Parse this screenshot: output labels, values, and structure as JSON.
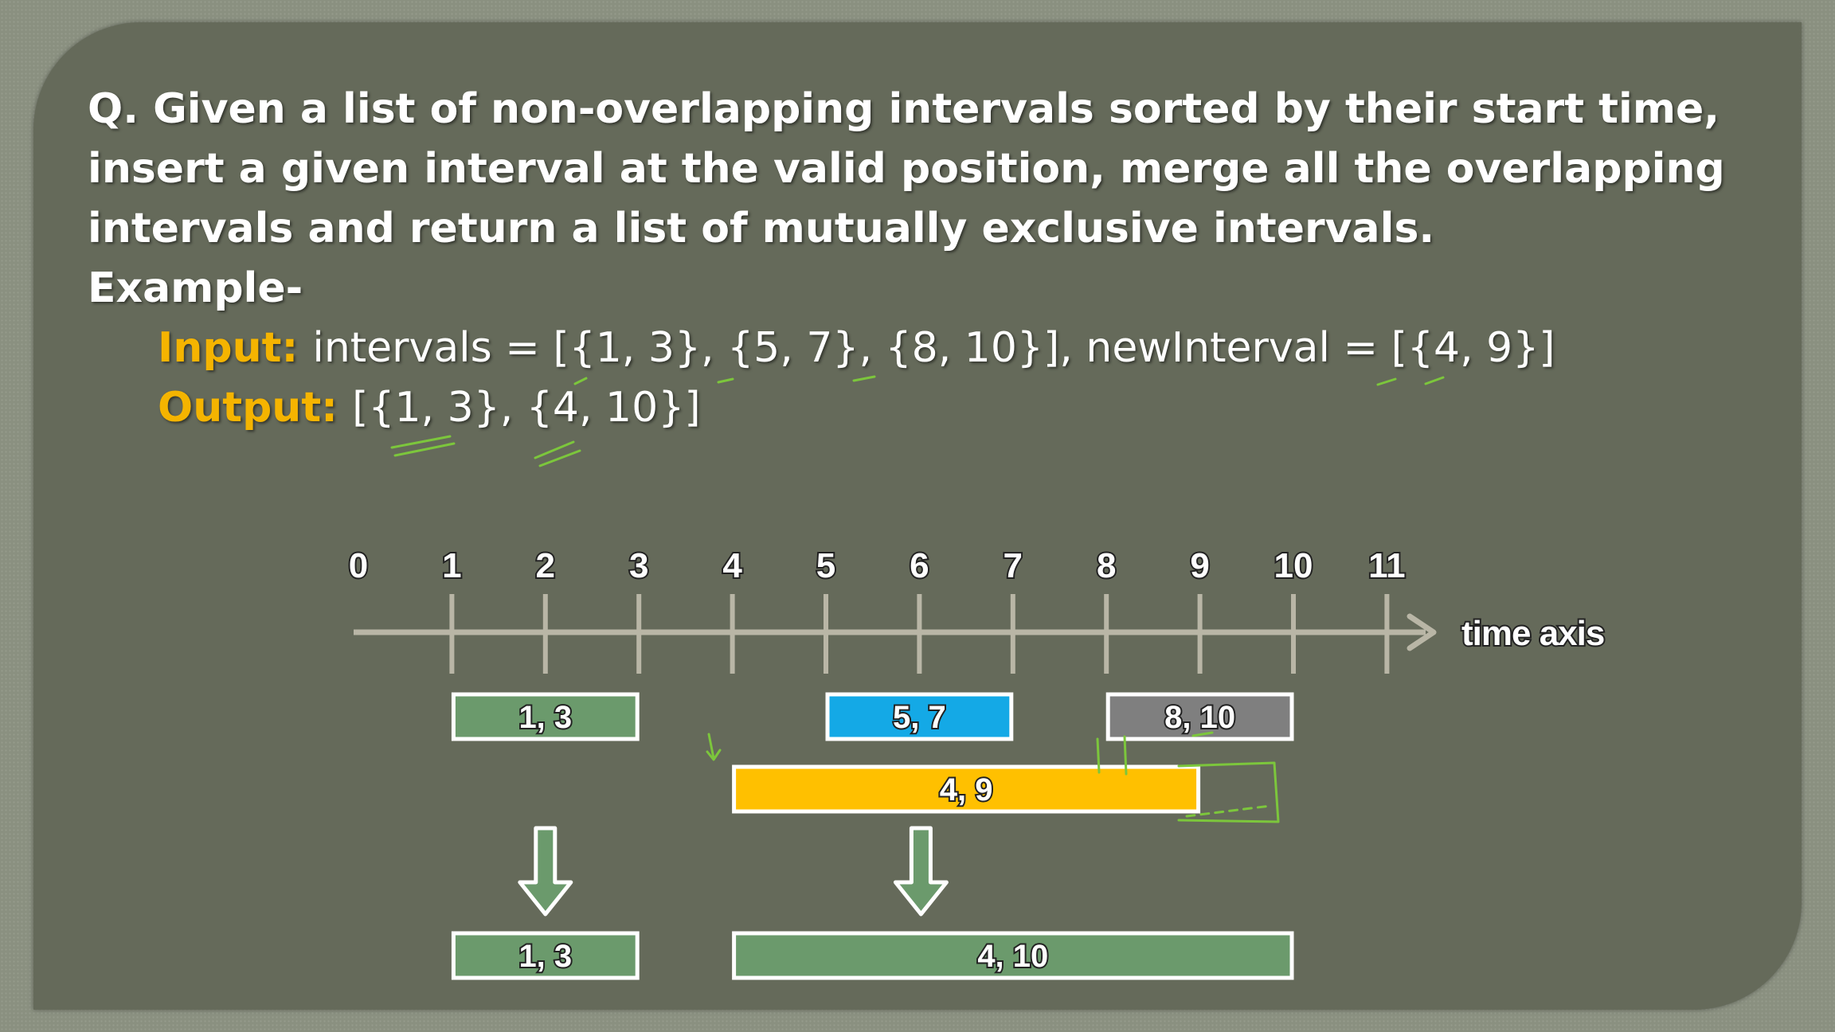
{
  "question": "Q. Given a list of non-overlapping intervals sorted by their start time, insert a given interval at the valid position, merge all the overlapping intervals and return a list of mutually exclusive intervals.",
  "example_label": "Example-",
  "input_label": "Input:",
  "input_text": "intervals = [{1, 3}, {5, 7}, {8, 10}], newInterval = [{4, 9}]",
  "output_label": "Output:",
  "output_text": "[{1, 3}, {4, 10}]",
  "axis": {
    "ticks": [
      "0",
      "1",
      "2",
      "3",
      "4",
      "5",
      "6",
      "7",
      "8",
      "9",
      "10",
      "11"
    ],
    "label": "time axis",
    "color": "#b9b6a6"
  },
  "diagram": {
    "existing_intervals": [
      {
        "start": 1,
        "end": 3,
        "label": "1, 3",
        "color": "#6b9a6c"
      },
      {
        "start": 5,
        "end": 7,
        "label": "5, 7",
        "color": "#14a9e6"
      },
      {
        "start": 8,
        "end": 10,
        "label": "8, 10",
        "color": "#7f7f7f"
      }
    ],
    "new_interval": {
      "start": 4,
      "end": 9,
      "label": "4, 9",
      "color": "#ffc000"
    },
    "result_intervals": [
      {
        "start": 1,
        "end": 3,
        "label": "1, 3",
        "color": "#6b9a6c"
      },
      {
        "start": 4,
        "end": 10,
        "label": "4, 10",
        "color": "#6b9a6c"
      }
    ],
    "arrow_color": "#6b9a6c",
    "annotation_color": "#7cc63c"
  }
}
